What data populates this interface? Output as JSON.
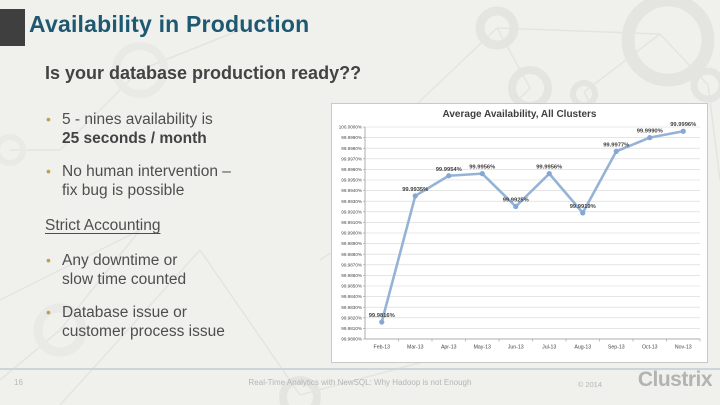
{
  "slide": {
    "title": "Availability in Production",
    "subtitle": "Is your database production ready??",
    "bullet_marker": "•",
    "bullets": [
      {
        "line1": "5 - nines availability is",
        "line2": "25 seconds / month"
      },
      {
        "line1": "No human intervention –",
        "line2": "fix bug is possible"
      },
      {
        "line1": "Any downtime or",
        "line2": "slow time counted"
      },
      {
        "line1": "Database issue or",
        "line2": "customer process issue"
      }
    ],
    "section_heading": "Strict Accounting"
  },
  "chart_data": {
    "type": "line",
    "title": "Average Availability, All Clusters",
    "categories": [
      "Feb-13",
      "Mar-13",
      "Apr-13",
      "May-13",
      "Jun-13",
      "Jul-13",
      "Aug-13",
      "Sep-13",
      "Oct-13",
      "Nov-13"
    ],
    "values": [
      99.9816,
      99.9935,
      99.9954,
      99.9956,
      99.9925,
      99.9956,
      99.9919,
      99.9977,
      99.999,
      99.9996
    ],
    "data_labels": [
      "99.9816%",
      "99.9935%",
      "99.9954%",
      "99.9956%",
      "99.9925%",
      "99.9956%",
      "99.9919%",
      "99.9977%",
      "99.9990%",
      "99.9996%"
    ],
    "ylim": [
      99.98,
      100.0
    ],
    "y_step": 0.001,
    "y_tick_labels": [
      "100.0000%",
      "99.9990%",
      "99.9980%",
      "99.9970%",
      "99.9960%",
      "99.9950%",
      "99.9940%",
      "99.9930%",
      "99.9920%",
      "99.9910%",
      "99.9900%",
      "99.9890%",
      "99.9880%",
      "99.9870%",
      "99.9860%",
      "99.9850%",
      "99.9840%",
      "99.9830%",
      "99.9820%",
      "99.9810%",
      "99.9800%"
    ],
    "grid": true,
    "legend": "none",
    "line_color": "#95b3d7",
    "marker_color": "#84a7d3",
    "label_color": "#3f3f3f",
    "grid_color": "#d6d6d6",
    "axis_color": "#9a9a9a",
    "tick_label_color": "#444444"
  },
  "footer": {
    "page_number": "16",
    "deck_title": "Real-Time Analytics with NewSQL: Why Hadoop is not Enough",
    "copyright": "© 2014",
    "logo": "Clustrix"
  },
  "colors": {
    "background": "#f0f0ed",
    "accent_bar": "#3f3f3f",
    "title_teal": "#1e5871",
    "body_gray": "#4e4e4e",
    "bullet_gold": "#bf9f4e",
    "footer_gray": "#b5b5b5",
    "pattern_gray": "#e4e4e0"
  }
}
